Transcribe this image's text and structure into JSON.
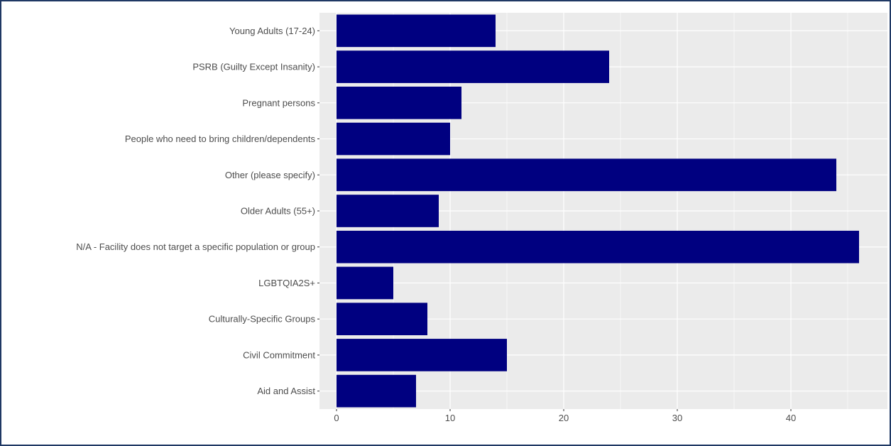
{
  "chart_data": {
    "type": "bar",
    "orientation": "horizontal",
    "title": "",
    "xlabel": "",
    "ylabel": "",
    "categories": [
      "Young Adults (17-24)",
      "PSRB (Guilty Except Insanity)",
      "Pregnant persons",
      "People who need to bring children/dependents",
      "Other (please specify)",
      "Older Adults (55+)",
      "N/A - Facility does not target a specific population or group",
      "LGBTQIA2S+",
      "Culturally-Specific Groups",
      "Civil Commitment",
      "Aid and Assist"
    ],
    "values": [
      14,
      24,
      11,
      10,
      44,
      9,
      46,
      5,
      8,
      15,
      7
    ],
    "xlim": [
      -1.5,
      48.5
    ],
    "xticks": [
      0,
      10,
      20,
      30,
      40
    ],
    "grid": true,
    "colors": {
      "bar": "#000080",
      "panel": "#ebebeb",
      "grid_major": "#ffffff",
      "tick_text": "#4d4d4d",
      "frame": "#1f3864"
    }
  }
}
